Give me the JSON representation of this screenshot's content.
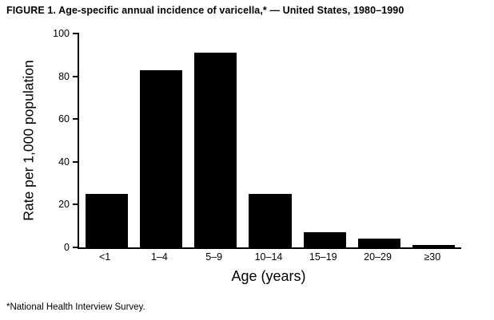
{
  "figure": {
    "title": "FIGURE 1. Age-specific annual incidence of varicella,* — United States, 1980–1990",
    "footnote": "*National Health Interview Survey."
  },
  "chart_data": {
    "type": "bar",
    "categories": [
      "<1",
      "1–4",
      "5–9",
      "10–14",
      "15–19",
      "20–29",
      "≥30"
    ],
    "values": [
      25,
      83,
      91,
      25,
      7,
      4,
      1
    ],
    "title": "FIGURE 1. Age-specific annual incidence of varicella,* — United States, 1980–1990",
    "xlabel": "Age (years)",
    "ylabel": "Rate per 1,000 population",
    "ylim": [
      0,
      100
    ],
    "yticks": [
      0,
      20,
      40,
      60,
      80,
      100
    ],
    "bar_color": "#000000",
    "background": "#ffffff",
    "grid": false,
    "legend": false
  }
}
